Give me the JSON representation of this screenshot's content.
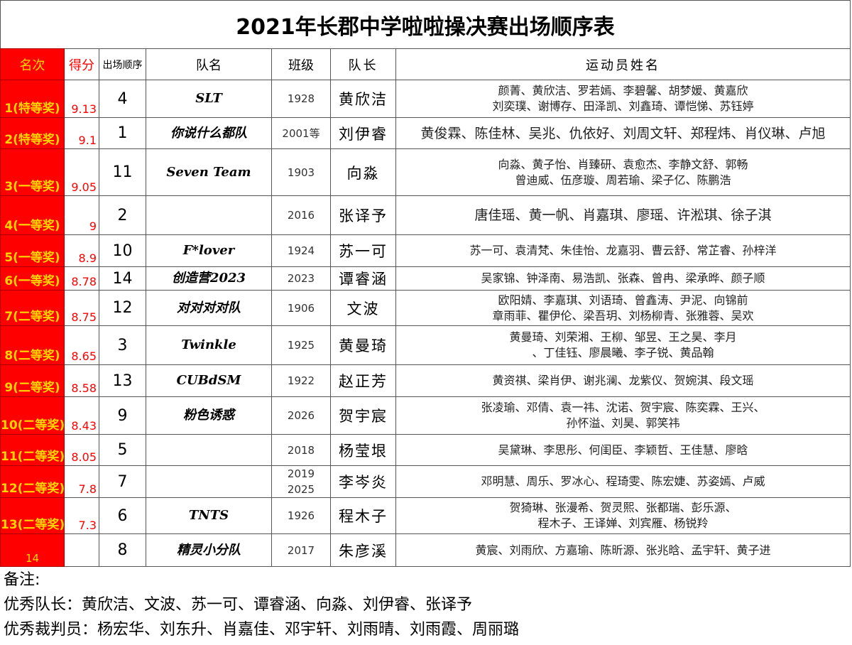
{
  "title": "2021年长郡中学啦啦操决赛出场顺序表",
  "headers": {
    "rank": "名次",
    "score": "得分",
    "order": "出场顺序",
    "team": "队名",
    "class": "班级",
    "captain": "队长",
    "athletes": "运动员姓名"
  },
  "colors": {
    "rank_bg": "#ff0000",
    "rank_text": "#ffd700",
    "score_text": "#ff0000"
  },
  "rows": [
    {
      "rank": "1(特等奖)",
      "score": "9.13",
      "order": "4",
      "team": "SLT",
      "class": "1928",
      "captain": "黄欣洁",
      "athletes": [
        "颜菁、黄欣洁、罗若嫣、李碧馨、胡梦媛、黄嘉欣",
        "刘奕璞、谢博存、田泽凯、刘鑫琦、谭恺悌、苏钰婷"
      ]
    },
    {
      "rank": "2(特等奖)",
      "score": "9.1",
      "order": "1",
      "team": "你说什么都队",
      "class": "2001等",
      "captain": "刘伊睿",
      "athletes": [
        "黄俊霖、陈佳林、吴兆、仇依好、刘周文轩、郑程炜、肖仪琳、卢旭"
      ]
    },
    {
      "rank": "3(一等奖)",
      "score": "9.05",
      "order": "11",
      "team": "Seven Team",
      "class": "1903",
      "captain": "向淼",
      "athletes": [
        "向淼、黄子怡、肖臻研、袁愈杰、李静文舒、郭畅",
        "曾迪威、伍彦璇、周若瑜、梁子亿、陈鹏浩"
      ]
    },
    {
      "rank": "4(一等奖)",
      "score": "9",
      "order": "2",
      "team": "",
      "class": "2016",
      "captain": "张译予",
      "athletes": [
        "唐佳瑶、黄一帆、肖嘉琪、廖瑶、许淞琪、徐子淇"
      ]
    },
    {
      "rank": "5(一等奖)",
      "score": "8.9",
      "order": "10",
      "team": "F*lover",
      "class": "1924",
      "captain": "苏一可",
      "athletes": [
        "苏一可、袁清梵、朱佳怡、龙嘉羽、曹云舒、常芷睿、孙梓洋"
      ]
    },
    {
      "rank": "6(一等奖)",
      "score": "8.78",
      "order": "14",
      "team": "创造营2023",
      "class": "2023",
      "captain": "谭睿涵",
      "athletes": [
        "吴家锦、钟泽南、易浩凯、张森、曾冉、梁承晔、颜子顺"
      ]
    },
    {
      "rank": "7(二等奖)",
      "score": "8.75",
      "order": "12",
      "team": "对对对对队",
      "class": "1906",
      "captain": "文波",
      "athletes": [
        "欧阳婧、李嘉琪、刘语琦、曾鑫涛、尹泥、向锦前",
        "章雨菲、瞿伊伦、梁吾玥、刘杨柳青、张雅蓉、吴欢"
      ]
    },
    {
      "rank": "8(二等奖)",
      "score": "8.65",
      "order": "3",
      "team": "Twinkle",
      "class": "1925",
      "captain": "黄曼琦",
      "athletes": [
        "黄曼琦、刘荣湘、王柳、邹昱、王之昊、李月",
        "、丁佳钰、廖晨曦、李子锐、黄品翰"
      ]
    },
    {
      "rank": "9(二等奖)",
      "score": "8.58",
      "order": "13",
      "team": "CUBdSM",
      "class": "1922",
      "captain": "赵正芳",
      "athletes": [
        "黄资祺、梁肖伊、谢兆澜、龙紫仪、贺婉淇、段文瑶"
      ]
    },
    {
      "rank": "10(二等奖)",
      "score": "8.43",
      "order": "9",
      "team": "粉色诱惑",
      "class": "2026",
      "captain": "贺宇宸",
      "athletes": [
        "张凌瑜、邓倩、袁一祎、沈诺、贺宇宸、陈奕霖、王兴、",
        "孙怀溢、刘昊、郭笑祎"
      ]
    },
    {
      "rank": "11(二等奖)",
      "score": "8.05",
      "order": "5",
      "team": "",
      "class": "2018",
      "captain": "杨莹垠",
      "athletes": [
        "吴黛琳、李思彤、何闺臣、李颖哲、王佳慧、廖晗"
      ]
    },
    {
      "rank": "12(二等奖)",
      "score": "7.8",
      "order": "7",
      "team": "",
      "class": "2019\n2025",
      "captain": "李岑炎",
      "athletes": [
        "邓明慧、周乐、罗冰心、程琦雯、陈宏婕、苏姿嫣、卢威"
      ]
    },
    {
      "rank": "13(二等奖)",
      "score": "7.3",
      "order": "6",
      "team": "TNTS",
      "class": "1926",
      "captain": "程木子",
      "athletes": [
        "贺猗琳、张漫希、贺灵熙、张都瑞、彭乐源、",
        "程木子、王译婵、刘宾雁、杨锐羚"
      ]
    },
    {
      "rank": "14",
      "score": "",
      "order": "8",
      "team": "精灵小分队",
      "class": "2017",
      "captain": "朱彦溪",
      "athletes": [
        "黄宸、刘雨欣、方嘉瑜、陈昕源、张兆晗、孟宇轩、黄子进"
      ]
    }
  ],
  "notes": {
    "label": "备注:",
    "captains": "优秀队长：黄欣洁、文波、苏一可、谭睿涵、向淼、刘伊睿、张译予",
    "judges": "优秀裁判员：杨宏华、刘东升、肖嘉佳、邓宇轩、刘雨晴、刘雨霞、周丽璐"
  }
}
